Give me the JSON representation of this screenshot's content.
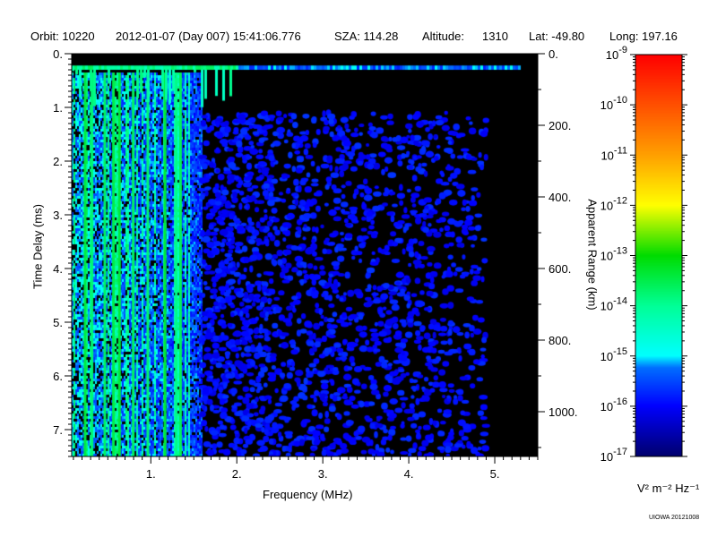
{
  "header": {
    "orbit": "Orbit: 10220",
    "datetime": "2012-01-07 (Day 007) 15:41:06.776",
    "sza": "SZA: 114.28",
    "altitude_label": "Altitude:",
    "altitude_value": "1310",
    "lat": "Lat: -49.80",
    "long": "Long: 197.16"
  },
  "chart_data": {
    "type": "heatmap",
    "title": "Orbit: 10220 2012-01-07 (Day 007) 15:41:06.776",
    "xlabel": "Frequency (MHz)",
    "ylabel": "Time Delay (ms)",
    "y2label": "Apparent Range (km)",
    "xlim": [
      0.08,
      5.5
    ],
    "ylim": [
      7.5,
      0
    ],
    "y2lim": [
      1125,
      0
    ],
    "xticks": [
      "1.",
      "2.",
      "3.",
      "4.",
      "5."
    ],
    "xtick_values": [
      1,
      2,
      3,
      4,
      5
    ],
    "yticks": [
      "0.",
      "1.",
      "2.",
      "3.",
      "4.",
      "5.",
      "6.",
      "7."
    ],
    "ytick_values": [
      0,
      1,
      2,
      3,
      4,
      5,
      6,
      7
    ],
    "y2ticks": [
      "0.",
      "200.",
      "400.",
      "600.",
      "800.",
      "1000."
    ],
    "y2tick_values": [
      0,
      200,
      400,
      600,
      800,
      1000
    ],
    "colorbar": {
      "label": "V² m⁻² Hz⁻¹",
      "scale": "log",
      "range": [
        1e-17,
        1e-09
      ],
      "ticks": [
        "-9",
        "-10",
        "-11",
        "-12",
        "-13",
        "-14",
        "-15",
        "-16",
        "-17"
      ],
      "colors": [
        "#000080",
        "#0000ff",
        "#00ffff",
        "#00ff80",
        "#00e000",
        "#ffff00",
        "#ffa000",
        "#ff5000",
        "#ff0000"
      ]
    },
    "description_values": {
      "strong_low_freq_band_MHz": [
        0.08,
        1.6
      ],
      "noise_region_MHz": [
        1.6,
        4.9
      ],
      "top_echo_row_ms": [
        0.2,
        0.3
      ],
      "background_level": 1e-17
    }
  },
  "footer": "UIOWA 20121008"
}
